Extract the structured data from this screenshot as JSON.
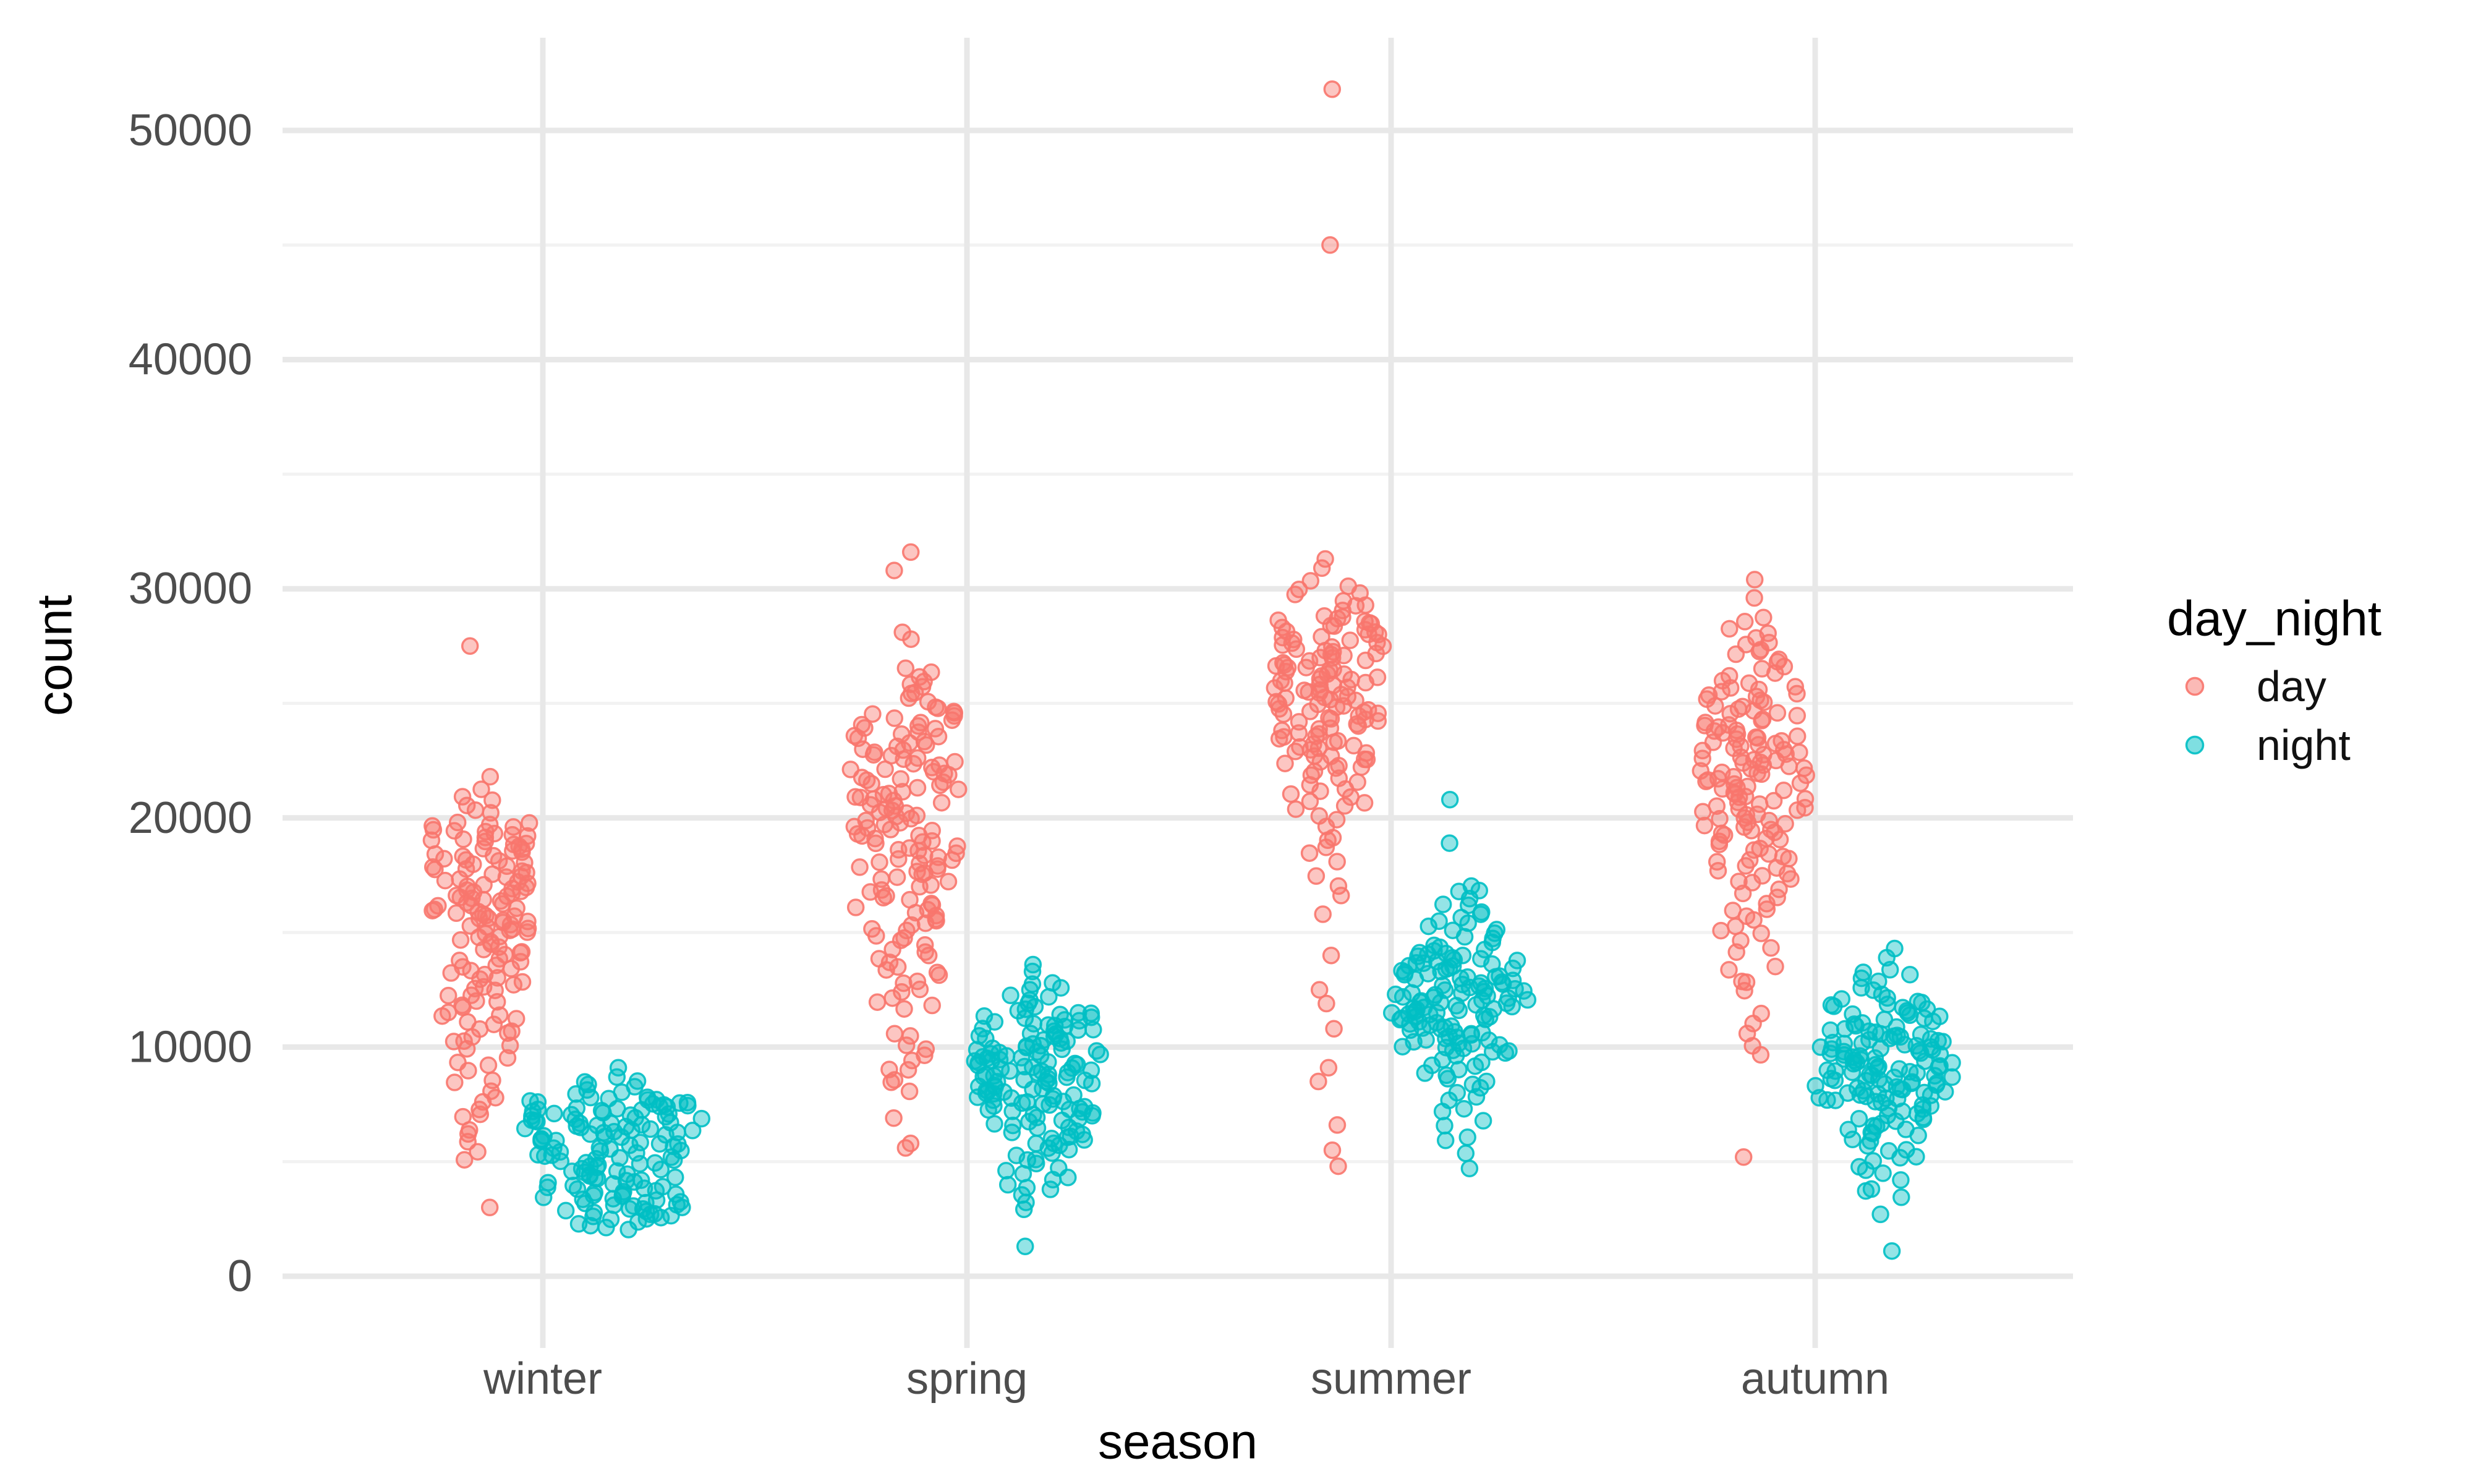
{
  "chart_data": {
    "type": "scatter",
    "subtype": "jittered strip plot (beeswarm style)",
    "title": "",
    "xlabel": "season",
    "ylabel": "count",
    "categories": [
      "winter",
      "spring",
      "summer",
      "autumn"
    ],
    "x_tick_labels": [
      "winter",
      "spring",
      "summer",
      "autumn"
    ],
    "y_axis": {
      "ticks": [
        {
          "label": "0",
          "value": 0
        },
        {
          "label": "10000",
          "value": 10000
        },
        {
          "label": "20000",
          "value": 20000
        },
        {
          "label": "30000",
          "value": 30000
        },
        {
          "label": "40000",
          "value": 40000
        },
        {
          "label": "50000",
          "value": 50000
        }
      ],
      "minor_breaks": [
        5000,
        15000,
        25000,
        35000,
        45000
      ],
      "range": [
        -3000,
        54000
      ]
    },
    "grid": {
      "horizontal": "major and minor",
      "vertical": "major at each category",
      "major_color": "#E8E8E8",
      "minor_color": "#F2F2F2"
    },
    "legend": {
      "title": "day_night",
      "position": "right",
      "entries": [
        {
          "label": "day",
          "color": "#F8766D"
        },
        {
          "label": "night",
          "color": "#00BFC4"
        }
      ]
    },
    "point_style": {
      "fill_opacity": 0.42,
      "stroke_opacity": 0.9
    },
    "bands_format": "[count_min, count_max, n_points, jitter_halfwidth_px]",
    "clusters": [
      {
        "season": "winter",
        "day_night": "day",
        "singles": [
          27500,
          21800,
          3000
        ],
        "bands": [
          [
            19800,
            21300,
            7,
            42
          ],
          [
            17000,
            19800,
            44,
            80
          ],
          [
            15000,
            17000,
            36,
            78
          ],
          [
            12500,
            15000,
            26,
            70
          ],
          [
            10000,
            12500,
            20,
            62
          ],
          [
            7000,
            10000,
            12,
            45
          ],
          [
            4900,
            7000,
            6,
            30
          ]
        ]
      },
      {
        "season": "winter",
        "day_night": "night",
        "singles": [
          9100
        ],
        "bands": [
          [
            7800,
            8700,
            9,
            70
          ],
          [
            6200,
            7800,
            48,
            148
          ],
          [
            5000,
            6200,
            28,
            120
          ],
          [
            3900,
            5000,
            24,
            105
          ],
          [
            2500,
            3900,
            32,
            118
          ],
          [
            2000,
            2500,
            6,
            55
          ]
        ]
      },
      {
        "season": "spring",
        "day_night": "day",
        "singles": [
          31600,
          30800,
          28100,
          27800,
          6900,
          5800,
          5600
        ],
        "bands": [
          [
            24800,
            26600,
            11,
            55
          ],
          [
            22500,
            24800,
            28,
            82
          ],
          [
            20000,
            22500,
            33,
            88
          ],
          [
            17500,
            20000,
            32,
            88
          ],
          [
            15000,
            17500,
            22,
            80
          ],
          [
            13000,
            15000,
            13,
            62
          ],
          [
            11600,
            13000,
            8,
            45
          ],
          [
            8000,
            10800,
            11,
            35
          ]
        ]
      },
      {
        "season": "spring",
        "day_night": "night",
        "singles": [
          13600,
          13300,
          1300
        ],
        "bands": [
          [
            11600,
            12900,
            10,
            50
          ],
          [
            10000,
            11600,
            30,
            95
          ],
          [
            8500,
            10000,
            40,
            110
          ],
          [
            7000,
            8500,
            34,
            102
          ],
          [
            5500,
            7000,
            20,
            80
          ],
          [
            3800,
            5500,
            12,
            52
          ],
          [
            2800,
            3800,
            4,
            28
          ]
        ]
      },
      {
        "season": "summer",
        "day_night": "day",
        "singles": [
          51800,
          45000,
          31300,
          30900,
          15800,
          14000,
          12500,
          11900,
          10800,
          9100,
          8500,
          6600,
          5500,
          4800
        ],
        "bands": [
          [
            28800,
            30400,
            10,
            60
          ],
          [
            26500,
            28800,
            38,
            88
          ],
          [
            24200,
            26500,
            42,
            92
          ],
          [
            22200,
            24200,
            28,
            80
          ],
          [
            20300,
            22200,
            14,
            62
          ],
          [
            18200,
            20300,
            7,
            45
          ],
          [
            16200,
            18200,
            4,
            30
          ]
        ]
      },
      {
        "season": "summer",
        "day_night": "night",
        "singles": [
          20800,
          18900,
          4700
        ],
        "bands": [
          [
            15800,
            17200,
            7,
            40
          ],
          [
            14200,
            15800,
            14,
            65
          ],
          [
            12700,
            14200,
            34,
            100
          ],
          [
            11200,
            12700,
            40,
            112
          ],
          [
            9700,
            11200,
            30,
            98
          ],
          [
            8200,
            9700,
            12,
            65
          ],
          [
            6700,
            8200,
            6,
            42
          ],
          [
            5200,
            6700,
            4,
            28
          ]
        ]
      },
      {
        "season": "autumn",
        "day_night": "day",
        "singles": [
          30400,
          29600,
          5200
        ],
        "bands": [
          [
            27600,
            28800,
            6,
            40
          ],
          [
            25800,
            27600,
            12,
            58
          ],
          [
            23800,
            25800,
            24,
            80
          ],
          [
            21500,
            23800,
            38,
            88
          ],
          [
            19200,
            21500,
            32,
            85
          ],
          [
            17200,
            19200,
            18,
            70
          ],
          [
            14800,
            17200,
            12,
            52
          ],
          [
            12200,
            14800,
            8,
            40
          ],
          [
            9200,
            11800,
            5,
            28
          ]
        ]
      },
      {
        "season": "autumn",
        "day_night": "night",
        "singles": [
          14300,
          13900,
          2700,
          1100
        ],
        "bands": [
          [
            12100,
            13500,
            9,
            45
          ],
          [
            10600,
            12100,
            24,
            90
          ],
          [
            9100,
            10600,
            40,
            115
          ],
          [
            7600,
            9100,
            40,
            112
          ],
          [
            6100,
            7600,
            20,
            82
          ],
          [
            4600,
            6100,
            10,
            55
          ],
          [
            3200,
            4600,
            5,
            32
          ]
        ]
      }
    ],
    "text_colors": {
      "tick_text": "#4D4D4D",
      "title_text": "#000000"
    }
  }
}
